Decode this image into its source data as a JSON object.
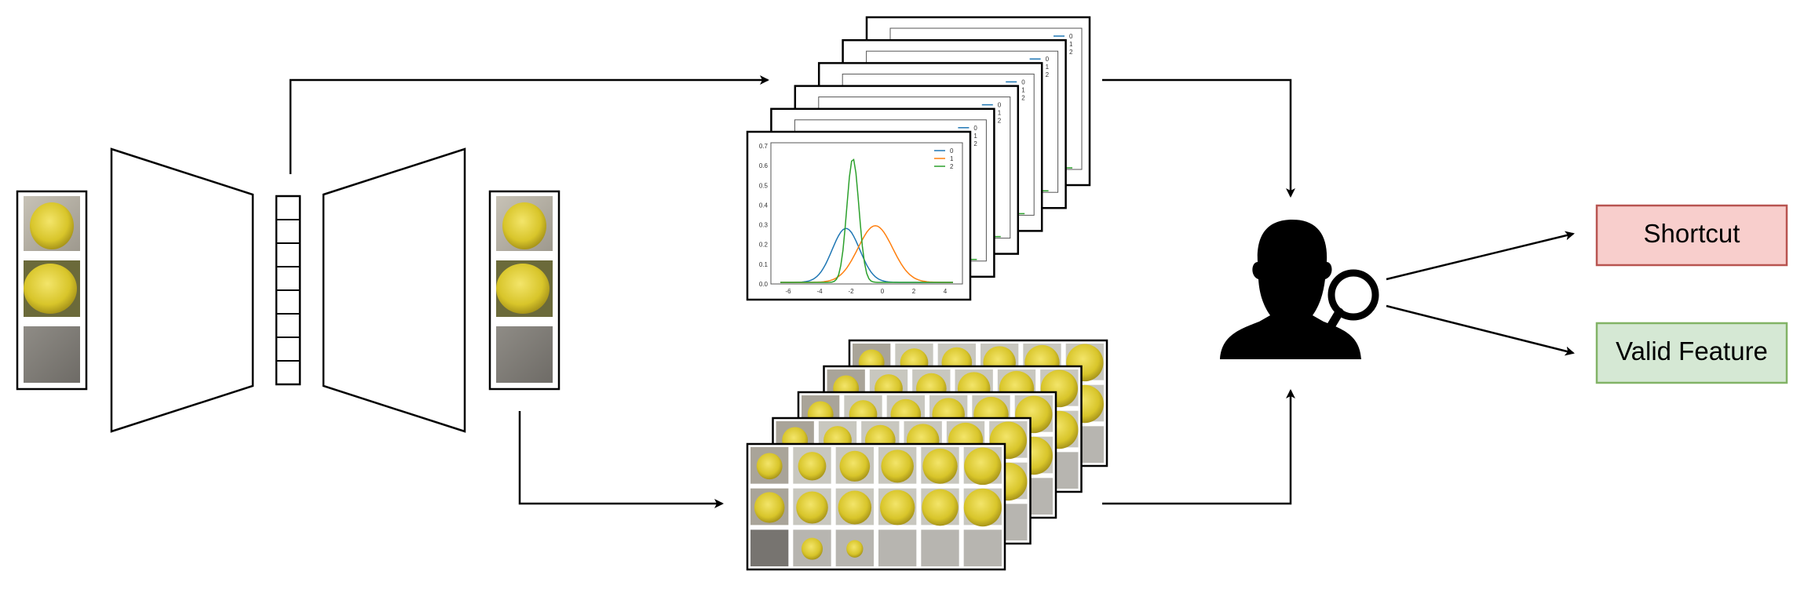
{
  "outputs": {
    "shortcut_label": "Shortcut",
    "valid_label": "Valid Feature",
    "shortcut_fill": "#f8cecc",
    "shortcut_stroke": "#b85450",
    "valid_fill": "#d5e8d4",
    "valid_stroke": "#82b366"
  },
  "density_plot": {
    "legend": [
      "0",
      "1",
      "2"
    ],
    "series_colors": [
      "#1f77b4",
      "#ff7f0e",
      "#2ca02c"
    ],
    "y_ticks": [
      "0.7",
      "0.6",
      "0.5",
      "0.4",
      "0.3",
      "0.2",
      "0.1",
      "0.0"
    ],
    "x_ticks": [
      "-6",
      "-4",
      "-2",
      "0",
      "2",
      "4"
    ],
    "stack_count": 6
  },
  "image_grid": {
    "rows": 3,
    "cols": 6,
    "stack_count": 5
  },
  "icons": {
    "inspector": "user-with-magnifier-icon"
  }
}
